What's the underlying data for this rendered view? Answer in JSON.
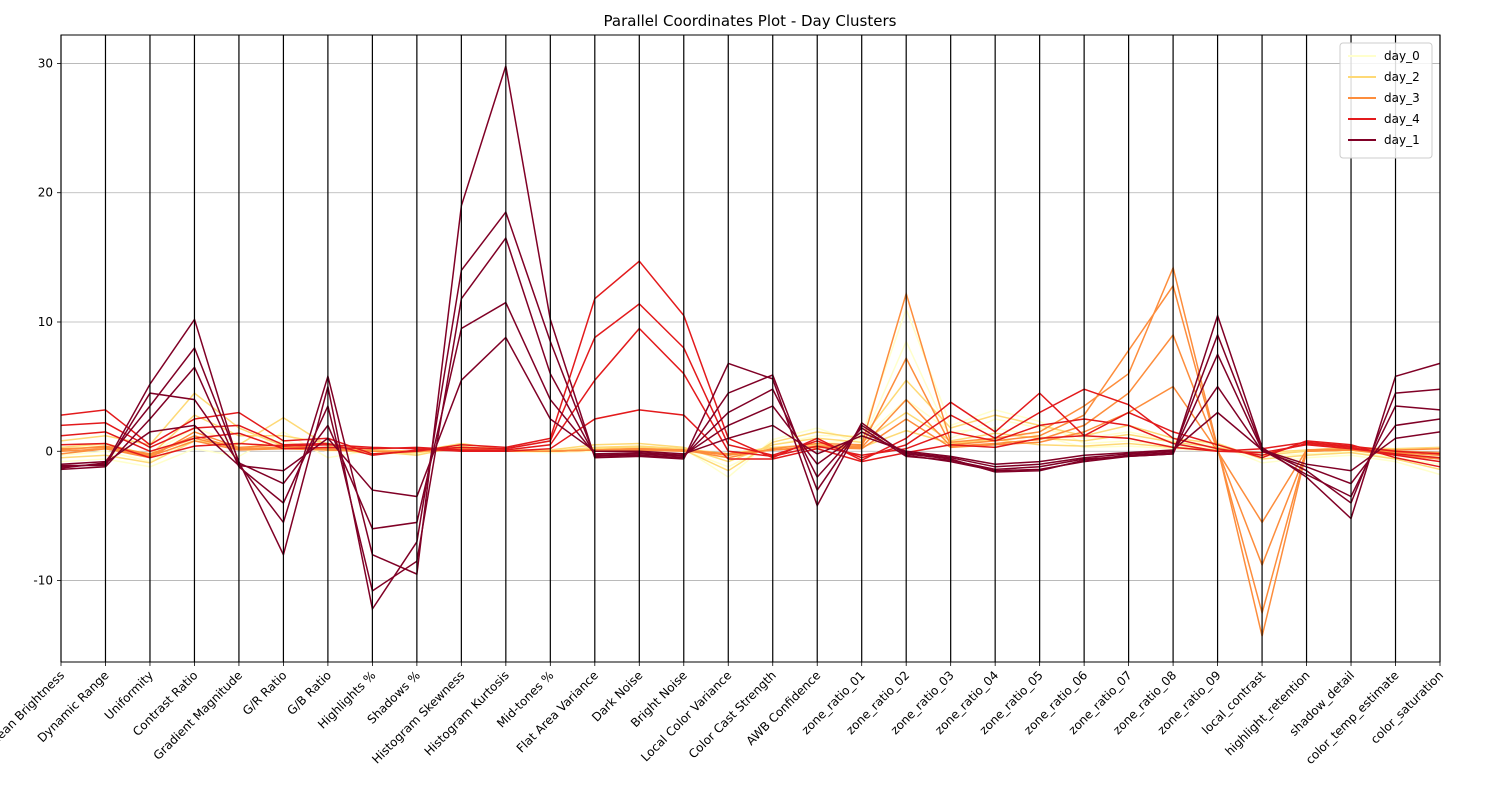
{
  "chart_data": {
    "type": "parallel-coordinates",
    "title": "Parallel Coordinates Plot - Day Clusters",
    "axes": [
      "Mean Brightness",
      "Dynamic Range",
      "Uniformity",
      "Contrast Ratio",
      "Gradient Magnitude",
      "G/R Ratio",
      "G/B Ratio",
      "Highlights %",
      "Shadows %",
      "Histogram Skewness",
      "Histogram Kurtosis",
      "Mid-tones %",
      "Flat Area Variance",
      "Dark Noise",
      "Bright Noise",
      "Local Color Variance",
      "Color Cast Strength",
      "AWB Confidence",
      "zone_ratio_01",
      "zone_ratio_02",
      "zone_ratio_03",
      "zone_ratio_04",
      "zone_ratio_05",
      "zone_ratio_06",
      "zone_ratio_07",
      "zone_ratio_08",
      "zone_ratio_09",
      "local_contrast",
      "highlight_retention",
      "shadow_detail",
      "color_temp_estimate",
      "color_saturation"
    ],
    "ylim": [
      -16.3,
      32.2
    ],
    "yticks": [
      -10,
      0,
      10,
      20,
      30
    ],
    "grid": true,
    "legend_position": "top-right",
    "series": [
      {
        "name": "day_0",
        "color": "#ffffcc",
        "lines": [
          [
            -0.8,
            -0.6,
            -1.2,
            0.2,
            -0.4,
            1.5,
            -0.5,
            0.1,
            -0.2,
            0.6,
            0.1,
            -0.1,
            0.3,
            0.4,
            0.2,
            -2.0,
            0.9,
            1.8,
            0.6,
            8.5,
            1.0,
            2.5,
            1.8,
            1.0,
            1.5,
            0.8,
            0.5,
            -0.9,
            -0.5,
            -0.3,
            -0.8,
            -1.8
          ],
          [
            -0.3,
            0.0,
            -0.8,
            1.0,
            0.2,
            0.8,
            0.0,
            0.2,
            -0.1,
            0.4,
            0.0,
            0.0,
            0.1,
            0.2,
            0.1,
            -1.2,
            0.5,
            1.2,
            1.2,
            11.0,
            2.0,
            3.2,
            2.3,
            0.6,
            0.8,
            0.4,
            0.2,
            -0.4,
            -0.2,
            0.0,
            -0.5,
            -1.0
          ],
          [
            0.2,
            0.5,
            -0.2,
            1.8,
            0.6,
            0.2,
            0.3,
            0.1,
            0.0,
            0.2,
            0.0,
            -0.1,
            0.0,
            0.1,
            0.0,
            -0.5,
            0.2,
            0.6,
            0.9,
            4.0,
            1.5,
            1.8,
            1.2,
            0.3,
            0.4,
            0.2,
            0.0,
            -0.1,
            0.0,
            0.2,
            -0.2,
            -0.4
          ]
        ]
      },
      {
        "name": "day_2",
        "color": "#fed976",
        "lines": [
          [
            -0.5,
            -0.3,
            -0.9,
            0.8,
            0.5,
            2.6,
            0.4,
            0.0,
            -0.3,
            0.4,
            0.0,
            0.0,
            0.2,
            0.3,
            0.1,
            -1.5,
            0.7,
            1.5,
            1.0,
            5.5,
            1.8,
            2.8,
            2.0,
            1.2,
            2.0,
            1.0,
            0.6,
            -0.6,
            -0.3,
            -0.1,
            -0.6,
            -1.4
          ],
          [
            0.3,
            0.6,
            -0.3,
            2.8,
            1.2,
            1.2,
            0.6,
            0.1,
            0.0,
            0.6,
            0.1,
            0.1,
            0.5,
            0.6,
            0.3,
            -0.8,
            0.5,
            1.0,
            0.7,
            3.0,
            0.8,
            1.4,
            1.0,
            0.8,
            1.3,
            0.7,
            0.3,
            -0.3,
            0.0,
            0.1,
            -0.2,
            -0.6
          ],
          [
            0.8,
            1.2,
            0.5,
            4.5,
            1.8,
            0.4,
            0.2,
            -0.2,
            -0.1,
            0.3,
            0.0,
            0.0,
            0.3,
            0.4,
            0.2,
            -0.2,
            0.3,
            0.5,
            0.3,
            1.6,
            0.6,
            0.9,
            0.5,
            0.4,
            0.6,
            0.3,
            0.1,
            -0.1,
            0.1,
            0.3,
            0.2,
            0.3
          ]
        ]
      },
      {
        "name": "day_3",
        "color": "#fd8d3c",
        "lines": [
          [
            -0.2,
            0.2,
            -0.5,
            1.5,
            0.3,
            0.5,
            0.2,
            0.0,
            0.0,
            0.3,
            0.0,
            0.0,
            0.1,
            0.2,
            0.1,
            -0.5,
            0.2,
            0.6,
            0.5,
            12.2,
            0.7,
            1.0,
            1.5,
            3.5,
            6.0,
            14.2,
            0.3,
            -14.3,
            0.0,
            0.1,
            -0.3,
            -0.6
          ],
          [
            0.1,
            0.4,
            -0.2,
            1.0,
            0.2,
            0.3,
            0.1,
            0.0,
            0.0,
            0.2,
            0.0,
            0.0,
            0.1,
            0.2,
            0.1,
            -0.3,
            0.1,
            0.4,
            0.4,
            7.2,
            0.5,
            0.8,
            1.2,
            2.8,
            7.8,
            12.8,
            0.2,
            -12.5,
            0.1,
            0.2,
            -0.1,
            -0.3
          ],
          [
            0.0,
            0.2,
            -0.4,
            0.8,
            0.1,
            0.2,
            0.1,
            0.0,
            0.0,
            0.1,
            0.0,
            0.0,
            0.1,
            0.1,
            0.0,
            -0.2,
            0.1,
            0.3,
            0.3,
            4.0,
            0.4,
            0.6,
            0.9,
            2.0,
            4.5,
            9.0,
            0.1,
            -8.8,
            0.0,
            0.1,
            0.0,
            -0.1
          ],
          [
            0.2,
            0.3,
            -0.3,
            1.2,
            0.2,
            0.3,
            0.2,
            0.0,
            0.0,
            0.2,
            0.0,
            0.0,
            0.1,
            0.1,
            0.1,
            -0.2,
            0.1,
            0.3,
            0.2,
            2.5,
            0.3,
            0.5,
            0.7,
            1.5,
            3.0,
            5.0,
            0.0,
            -5.5,
            0.1,
            0.2,
            0.1,
            0.2
          ]
        ]
      },
      {
        "name": "day_4",
        "color": "#e31a1c",
        "lines": [
          [
            2.8,
            3.2,
            0.5,
            2.5,
            3.0,
            0.8,
            1.0,
            -0.2,
            0.0,
            0.5,
            0.3,
            1.0,
            11.8,
            14.7,
            10.5,
            1.0,
            -0.5,
            1.0,
            -0.7,
            1.0,
            3.8,
            1.5,
            4.5,
            1.2,
            3.0,
            1.5,
            0.5,
            -0.5,
            0.8,
            0.5,
            -0.5,
            -1.2
          ],
          [
            2.0,
            2.2,
            0.3,
            1.8,
            2.0,
            0.5,
            0.6,
            -0.3,
            0.1,
            0.3,
            0.2,
            0.8,
            8.8,
            11.4,
            8.0,
            0.5,
            -0.3,
            0.8,
            -0.5,
            0.5,
            2.8,
            1.0,
            3.0,
            4.8,
            3.6,
            1.0,
            0.2,
            -0.3,
            0.6,
            0.3,
            -0.3,
            -0.8
          ],
          [
            1.2,
            1.5,
            0.0,
            1.0,
            1.4,
            0.2,
            0.3,
            0.2,
            0.3,
            0.1,
            0.1,
            0.5,
            5.5,
            9.5,
            6.0,
            0.0,
            -0.4,
            0.4,
            -0.3,
            0.2,
            1.5,
            0.8,
            2.0,
            2.5,
            2.0,
            0.6,
            0.0,
            -0.1,
            0.5,
            0.2,
            -0.2,
            -0.5
          ],
          [
            0.5,
            0.6,
            -0.5,
            0.4,
            0.6,
            0.4,
            0.5,
            0.3,
            0.2,
            0.0,
            0.0,
            0.2,
            2.5,
            3.2,
            2.8,
            -0.6,
            -0.6,
            0.2,
            -0.8,
            -0.1,
            0.5,
            0.3,
            1.0,
            1.2,
            1.0,
            0.3,
            0.0,
            0.2,
            0.7,
            0.4,
            0.0,
            -0.2
          ]
        ]
      },
      {
        "name": "day_1",
        "color": "#800026",
        "lines": [
          [
            -1.2,
            -1.0,
            5.2,
            10.2,
            -1.0,
            -5.5,
            5.8,
            -8.0,
            -9.5,
            19.0,
            29.8,
            10.2,
            -0.5,
            -0.4,
            -0.6,
            6.8,
            5.6,
            -4.2,
            2.2,
            -0.3,
            -0.8,
            -1.5,
            -1.4,
            -0.8,
            -0.4,
            -0.2,
            10.5,
            0.3,
            -2.0,
            -5.2,
            5.8,
            6.8
          ],
          [
            -1.0,
            -0.8,
            3.5,
            8.0,
            -0.8,
            -8.0,
            5.0,
            -12.2,
            -7.0,
            14.0,
            18.5,
            8.5,
            -0.4,
            -0.3,
            -0.5,
            4.5,
            5.9,
            -3.0,
            2.0,
            -0.2,
            -0.6,
            -1.6,
            -1.5,
            -0.7,
            -0.3,
            -0.1,
            9.0,
            0.2,
            -1.5,
            -4.0,
            4.5,
            4.8
          ],
          [
            -1.4,
            -1.2,
            2.5,
            6.5,
            -1.2,
            -4.0,
            3.5,
            -10.8,
            -8.5,
            11.8,
            16.5,
            6.0,
            -0.3,
            -0.2,
            -0.4,
            3.0,
            4.8,
            -2.0,
            1.8,
            -0.4,
            -0.7,
            -1.4,
            -1.2,
            -0.6,
            -0.4,
            -0.2,
            7.5,
            0.1,
            -1.8,
            -3.5,
            3.5,
            3.2
          ],
          [
            -1.1,
            -1.1,
            4.5,
            4.0,
            -0.9,
            -2.5,
            2.0,
            -6.0,
            -5.5,
            9.5,
            11.5,
            4.0,
            -0.2,
            -0.1,
            -0.3,
            2.0,
            3.5,
            -1.0,
            1.5,
            -0.1,
            -0.5,
            -1.2,
            -1.0,
            -0.5,
            -0.2,
            0.0,
            5.0,
            0.0,
            -1.2,
            -2.5,
            2.0,
            2.5
          ],
          [
            -1.3,
            -0.9,
            1.5,
            2.0,
            -1.1,
            -1.5,
            1.0,
            -3.0,
            -3.5,
            5.5,
            8.8,
            2.5,
            0.0,
            0.0,
            -0.2,
            1.0,
            2.0,
            -0.2,
            1.2,
            0.0,
            -0.4,
            -1.0,
            -0.8,
            -0.3,
            -0.1,
            0.1,
            3.0,
            0.1,
            -1.0,
            -1.5,
            1.0,
            1.5
          ]
        ]
      }
    ]
  }
}
